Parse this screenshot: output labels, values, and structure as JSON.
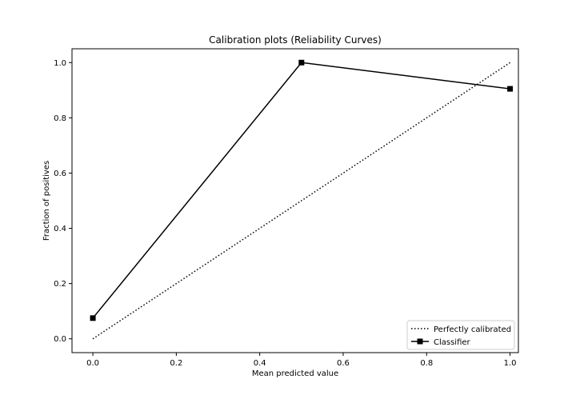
{
  "chart_data": {
    "type": "line",
    "title": "Calibration plots (Reliability Curves)",
    "xlabel": "Mean predicted value",
    "ylabel": "Fraction of positives",
    "xlim": [
      -0.05,
      1.02
    ],
    "ylim": [
      -0.05,
      1.05
    ],
    "xticks": [
      0.0,
      0.2,
      0.4,
      0.6,
      0.8,
      1.0
    ],
    "yticks": [
      0.0,
      0.2,
      0.4,
      0.6,
      0.8,
      1.0
    ],
    "xtick_labels": [
      "0.0",
      "0.2",
      "0.4",
      "0.6",
      "0.8",
      "1.0"
    ],
    "ytick_labels": [
      "0.0",
      "0.2",
      "0.4",
      "0.6",
      "0.8",
      "1.0"
    ],
    "grid": false,
    "legend_position": "lower-right",
    "series": [
      {
        "name": "Perfectly calibrated",
        "style": "dotted",
        "color": "#000000",
        "marker": "none",
        "x": [
          0.0,
          1.0
        ],
        "y": [
          0.0,
          1.0
        ]
      },
      {
        "name": "Classifier",
        "style": "solid",
        "color": "#000000",
        "marker": "square",
        "x": [
          0.0,
          0.5,
          1.0
        ],
        "y": [
          0.075,
          1.0,
          0.905
        ]
      }
    ]
  }
}
